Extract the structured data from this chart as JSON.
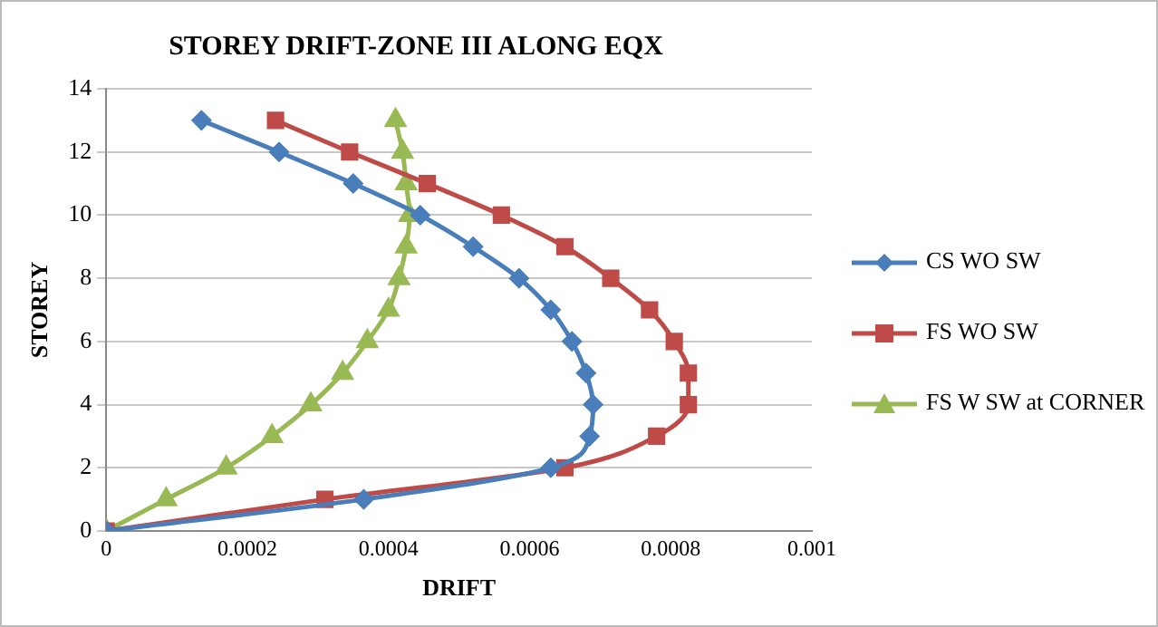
{
  "chart_data": {
    "type": "line",
    "title": "STOREY DRIFT-ZONE III ALONG EQX",
    "xlabel": "DRIFT",
    "ylabel": "STOREY",
    "xlim": [
      0,
      0.001
    ],
    "xticks": [
      0,
      0.0002,
      0.0004,
      0.0006,
      0.0008,
      0.001
    ],
    "ylim": [
      0,
      14
    ],
    "yticks": [
      0,
      2,
      4,
      6,
      8,
      10,
      12,
      14
    ],
    "grid": "y",
    "legend": "right",
    "series": [
      {
        "name": "CS WO SW",
        "color": "#4a7ebb",
        "marker": "diamond",
        "values": [
          0,
          1,
          2,
          3,
          4,
          5,
          6,
          7,
          8,
          9,
          10,
          11,
          12,
          13
        ],
        "x": [
          0,
          0.000365,
          0.00063,
          0.000685,
          0.00069,
          0.00068,
          0.00066,
          0.00063,
          0.000585,
          0.00052,
          0.000445,
          0.00035,
          0.000245,
          0.000135
        ]
      },
      {
        "name": "FS WO SW",
        "color": "#be4b48",
        "marker": "square",
        "values": [
          0,
          1,
          2,
          3,
          4,
          5,
          6,
          7,
          8,
          9,
          10,
          11,
          12,
          13
        ],
        "x": [
          0,
          0.00031,
          0.00065,
          0.00078,
          0.000825,
          0.000825,
          0.000805,
          0.00077,
          0.000715,
          0.00065,
          0.00056,
          0.000455,
          0.000345,
          0.00024
        ]
      },
      {
        "name": "FS W SW at CORNER",
        "color": "#98b954",
        "marker": "triangle",
        "values": [
          0,
          1,
          2,
          3,
          4,
          5,
          6,
          7,
          8,
          9,
          10,
          11,
          12,
          13
        ],
        "x": [
          0,
          8.5e-05,
          0.00017,
          0.000235,
          0.00029,
          0.000335,
          0.00037,
          0.0004,
          0.000415,
          0.000425,
          0.00043,
          0.000425,
          0.00042,
          0.00041
        ]
      }
    ]
  }
}
